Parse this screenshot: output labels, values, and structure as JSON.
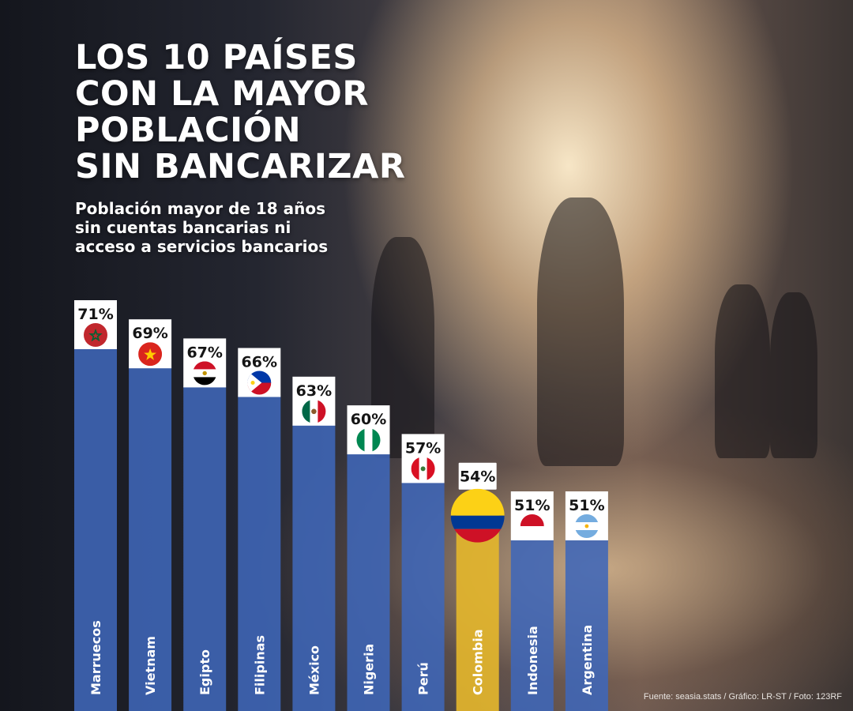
{
  "title": [
    "LOS 10 PAÍSES",
    "CON LA MAYOR",
    "POBLACIÓN",
    "SIN BANCARIZAR"
  ],
  "subtitle": [
    "Población mayor de 18 años",
    "sin cuentas bancarias ni",
    "acceso a servicios bancarios"
  ],
  "source": "Fuente: seasia.stats / Gráfico: LR-ST / Foto: 123RF",
  "colors": {
    "bar": "#3f67b8",
    "highlight": "#e3b52d",
    "label_box": "#ffffff"
  },
  "chart_data": {
    "type": "bar",
    "unit": "%",
    "categories": [
      "Marruecos",
      "Vietnam",
      "Egipto",
      "Filipinas",
      "México",
      "Nigeria",
      "Perú",
      "Colombia",
      "Indonesia",
      "Argentina"
    ],
    "values": [
      71,
      69,
      67,
      66,
      63,
      60,
      57,
      54,
      51,
      51
    ],
    "value_labels": [
      "71%",
      "69%",
      "67%",
      "66%",
      "63%",
      "60%",
      "57%",
      "54%",
      "51%",
      "51%"
    ],
    "highlight": "Colombia",
    "flag_icons": [
      "flag-morocco",
      "flag-vietnam",
      "flag-egypt",
      "flag-philippines",
      "flag-mexico",
      "flag-nigeria",
      "flag-peru",
      "flag-colombia",
      "flag-indonesia",
      "flag-argentina"
    ]
  }
}
